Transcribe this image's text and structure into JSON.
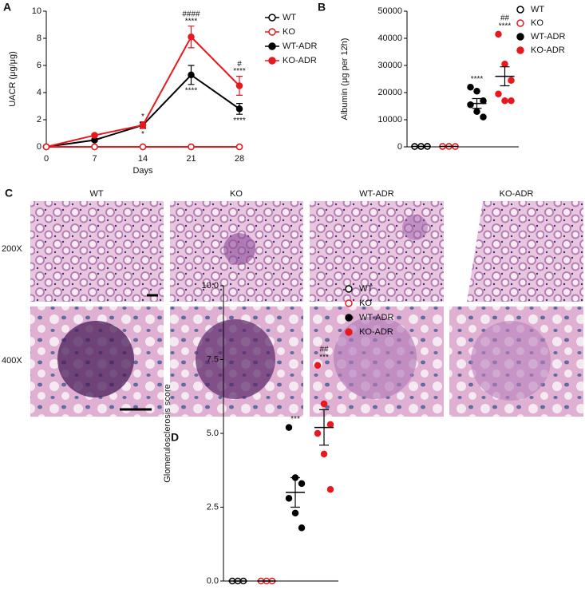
{
  "chart_data": [
    {
      "type": "line",
      "panel_label": "A",
      "ylabel": "UACR (μg/μg)",
      "xlabel": "Days",
      "x": [
        0,
        7,
        14,
        21,
        28
      ],
      "xlim": [
        0,
        28
      ],
      "xticks": [
        0,
        7,
        14,
        21,
        28
      ],
      "ylim": [
        0,
        10
      ],
      "yticks": [
        0,
        2,
        4,
        6,
        8,
        10
      ],
      "series": [
        {
          "name": "WT",
          "color": "#000000",
          "marker": "open",
          "dash": true,
          "values": [
            0,
            0,
            0,
            0,
            0
          ],
          "errors": [
            0,
            0,
            0,
            0,
            0
          ]
        },
        {
          "name": "KO",
          "color": "#e8191e",
          "marker": "open",
          "dash": false,
          "values": [
            0,
            0,
            0,
            0,
            0
          ],
          "errors": [
            0,
            0,
            0,
            0,
            0
          ]
        },
        {
          "name": "WT-ADR",
          "color": "#000000",
          "marker": "filled",
          "dash": false,
          "values": [
            0,
            0.5,
            1.6,
            5.3,
            2.8
          ],
          "errors": [
            0,
            0.1,
            0.2,
            0.7,
            0.4
          ]
        },
        {
          "name": "KO-ADR",
          "color": "#e8191e",
          "marker": "filled",
          "dash": false,
          "values": [
            0,
            0.85,
            1.6,
            8.1,
            4.5
          ],
          "errors": [
            0,
            0.1,
            0.25,
            0.8,
            0.7
          ]
        }
      ],
      "annotations": [
        {
          "x": 14,
          "series": 3,
          "side": "above",
          "lines": [
            "*"
          ]
        },
        {
          "x": 14,
          "series": 2,
          "side": "below",
          "lines": [
            "*"
          ]
        },
        {
          "x": 21,
          "series": 3,
          "side": "above",
          "lines": [
            "####",
            "****"
          ]
        },
        {
          "x": 21,
          "series": 2,
          "side": "below",
          "lines": [
            "****"
          ]
        },
        {
          "x": 28,
          "series": 3,
          "side": "above",
          "lines": [
            "#",
            "****"
          ]
        },
        {
          "x": 28,
          "series": 2,
          "side": "below",
          "lines": [
            "****"
          ]
        }
      ]
    },
    {
      "type": "dot",
      "panel_label": "B",
      "ylabel": "Albumin (μg per 12h)",
      "ylim": [
        0,
        50000
      ],
      "yticks": [
        0,
        10000,
        20000,
        30000,
        40000,
        50000
      ],
      "series": [
        {
          "name": "WT",
          "color": "#000000",
          "marker": "open",
          "values": [
            150,
            100,
            200,
            120,
            180,
            160
          ],
          "mean": 150,
          "sem": 20
        },
        {
          "name": "KO",
          "color": "#e8191e",
          "marker": "open",
          "values": [
            120,
            150,
            100,
            200,
            170,
            140
          ],
          "mean": 150,
          "sem": 20
        },
        {
          "name": "WT-ADR",
          "color": "#000000",
          "marker": "filled",
          "values": [
            22000,
            20500,
            17000,
            15500,
            13000,
            11000
          ],
          "mean": 16000,
          "sem": 1800
        },
        {
          "name": "KO-ADR",
          "color": "#e8191e",
          "marker": "filled",
          "values": [
            41500,
            30500,
            24500,
            19500,
            17000,
            17000
          ],
          "mean": 26000,
          "sem": 3500
        }
      ],
      "annotations": [
        {
          "series": 2,
          "lines": [
            "****"
          ]
        },
        {
          "series": 3,
          "lines": [
            "##",
            "****"
          ]
        }
      ]
    },
    {
      "type": "dot",
      "panel_label": "D",
      "ylabel": "Glomerulosclerosis score",
      "ylim": [
        0,
        10
      ],
      "yticks": [
        {
          "value": 0,
          "label": "0.0"
        },
        2.5,
        {
          "value": 5,
          "label": "5.0"
        },
        7.5,
        {
          "value": 10,
          "label": "10.0"
        }
      ],
      "series": [
        {
          "name": "WT",
          "color": "#000000",
          "marker": "open",
          "values": [
            0,
            0,
            0
          ],
          "mean": 0,
          "sem": 0
        },
        {
          "name": "KO",
          "color": "#e8191e",
          "marker": "open",
          "values": [
            0,
            0,
            0
          ],
          "mean": 0,
          "sem": 0
        },
        {
          "name": "WT-ADR",
          "color": "#000000",
          "marker": "filled",
          "values": [
            5.2,
            3.5,
            3.3,
            2.8,
            2.3,
            1.8
          ],
          "mean": 3.0,
          "sem": 0.5
        },
        {
          "name": "KO-ADR",
          "color": "#e8191e",
          "marker": "filled",
          "values": [
            7.3,
            6.0,
            5.3,
            5.0,
            4.3,
            3.1
          ],
          "mean": 5.2,
          "sem": 0.6
        }
      ],
      "annotations": [
        {
          "series": 2,
          "lines": [
            "***"
          ]
        },
        {
          "series": 3,
          "lines": [
            "##",
            "***"
          ]
        }
      ]
    }
  ],
  "images": {
    "panel_label": "C",
    "columns": [
      "WT",
      "KO",
      "WT-ADR",
      "KO-ADR"
    ],
    "rows": [
      "200X",
      "400X"
    ]
  }
}
